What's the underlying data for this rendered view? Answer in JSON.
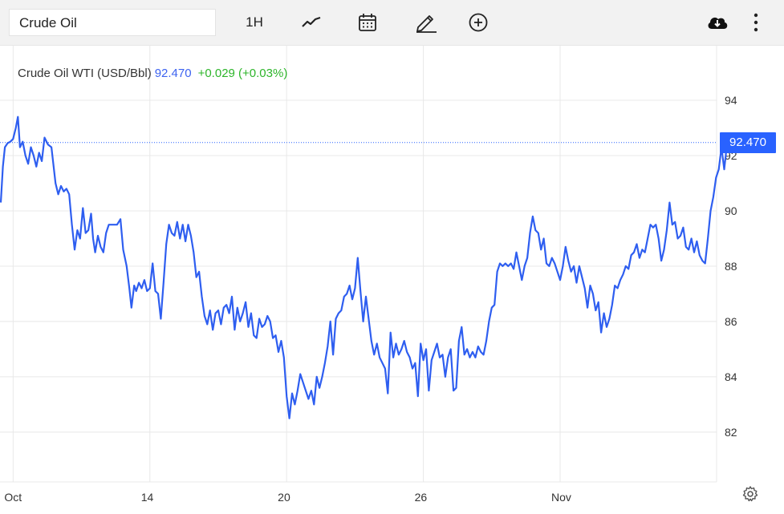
{
  "toolbar": {
    "symbol_value": "Crude Oil",
    "interval_label": "1H",
    "icons": [
      "line-chart-icon",
      "calendar-icon",
      "pencil-icon",
      "add-circle-icon",
      "cloud-download-icon",
      "more-vertical-icon"
    ]
  },
  "legend": {
    "name": "Crude Oil WTI (USD/Bbl)",
    "price": "92.470",
    "change": "+0.029 (+0.03%)"
  },
  "price_tag": "92.470",
  "colors": {
    "line": "#2e5ef0",
    "price_tag": "#2962ff",
    "change_positive": "#2db52a",
    "grid": "#e8e8e8"
  },
  "chart_data": {
    "type": "line",
    "title": "Crude Oil WTI (USD/Bbl)",
    "y_ticks": [
      82,
      84,
      86,
      88,
      90,
      92,
      94
    ],
    "ylim": [
      80.2,
      96.0
    ],
    "x_ticks": [
      {
        "label": "Oct",
        "x": 0
      },
      {
        "label": "14",
        "x": 10
      },
      {
        "label": "20",
        "x": 20
      },
      {
        "label": "26",
        "x": 30
      },
      {
        "label": "Nov",
        "x": 40
      }
    ],
    "xlim": [
      -0.9,
      51.5
    ],
    "last_value": 92.47,
    "grid": true,
    "series": [
      {
        "values": [
          [
            -0.9,
            90.3
          ],
          [
            -0.75,
            91.6
          ],
          [
            -0.6,
            92.3
          ],
          [
            -0.4,
            92.45
          ],
          [
            -0.2,
            92.5
          ],
          [
            0.0,
            92.6
          ],
          [
            0.2,
            93.0
          ],
          [
            0.35,
            93.4
          ],
          [
            0.5,
            92.3
          ],
          [
            0.7,
            92.5
          ],
          [
            0.9,
            92.0
          ],
          [
            1.1,
            91.7
          ],
          [
            1.3,
            92.3
          ],
          [
            1.5,
            92.0
          ],
          [
            1.7,
            91.6
          ],
          [
            1.9,
            92.1
          ],
          [
            2.1,
            91.8
          ],
          [
            2.3,
            92.65
          ],
          [
            2.55,
            92.4
          ],
          [
            2.8,
            92.3
          ],
          [
            3.1,
            91.0
          ],
          [
            3.3,
            90.6
          ],
          [
            3.5,
            90.9
          ],
          [
            3.7,
            90.7
          ],
          [
            3.9,
            90.8
          ],
          [
            4.1,
            90.6
          ],
          [
            4.3,
            89.5
          ],
          [
            4.5,
            88.6
          ],
          [
            4.7,
            89.3
          ],
          [
            4.9,
            89.0
          ],
          [
            5.1,
            90.1
          ],
          [
            5.3,
            89.2
          ],
          [
            5.5,
            89.3
          ],
          [
            5.7,
            89.9
          ],
          [
            5.85,
            89.0
          ],
          [
            6.0,
            88.5
          ],
          [
            6.2,
            89.1
          ],
          [
            6.4,
            88.7
          ],
          [
            6.6,
            88.5
          ],
          [
            6.8,
            89.2
          ],
          [
            7.0,
            89.5
          ],
          [
            7.3,
            89.5
          ],
          [
            7.6,
            89.5
          ],
          [
            7.85,
            89.7
          ],
          [
            8.05,
            88.6
          ],
          [
            8.3,
            88.0
          ],
          [
            8.5,
            87.2
          ],
          [
            8.65,
            86.5
          ],
          [
            8.85,
            87.3
          ],
          [
            9.0,
            87.1
          ],
          [
            9.2,
            87.4
          ],
          [
            9.4,
            87.2
          ],
          [
            9.6,
            87.5
          ],
          [
            9.8,
            87.1
          ],
          [
            10.0,
            87.2
          ],
          [
            10.2,
            88.1
          ],
          [
            10.4,
            87.1
          ],
          [
            10.6,
            87.0
          ],
          [
            10.8,
            86.1
          ],
          [
            11.0,
            87.4
          ],
          [
            11.2,
            88.8
          ],
          [
            11.4,
            89.5
          ],
          [
            11.6,
            89.2
          ],
          [
            11.8,
            89.1
          ],
          [
            12.0,
            89.6
          ],
          [
            12.2,
            89.0
          ],
          [
            12.4,
            89.5
          ],
          [
            12.6,
            88.9
          ],
          [
            12.8,
            89.5
          ],
          [
            13.0,
            89.1
          ],
          [
            13.2,
            88.5
          ],
          [
            13.4,
            87.6
          ],
          [
            13.6,
            87.8
          ],
          [
            13.8,
            86.9
          ],
          [
            14.0,
            86.2
          ],
          [
            14.2,
            85.9
          ],
          [
            14.4,
            86.4
          ],
          [
            14.6,
            85.7
          ],
          [
            14.8,
            86.3
          ],
          [
            15.0,
            86.4
          ],
          [
            15.2,
            85.9
          ],
          [
            15.4,
            86.5
          ],
          [
            15.6,
            86.6
          ],
          [
            15.8,
            86.3
          ],
          [
            16.0,
            86.9
          ],
          [
            16.2,
            85.7
          ],
          [
            16.4,
            86.5
          ],
          [
            16.6,
            86.0
          ],
          [
            16.8,
            86.3
          ],
          [
            17.0,
            86.7
          ],
          [
            17.2,
            85.8
          ],
          [
            17.4,
            86.3
          ],
          [
            17.6,
            85.5
          ],
          [
            17.8,
            85.4
          ],
          [
            18.0,
            86.1
          ],
          [
            18.2,
            85.8
          ],
          [
            18.4,
            85.9
          ],
          [
            18.6,
            86.2
          ],
          [
            18.8,
            86.0
          ],
          [
            19.0,
            85.4
          ],
          [
            19.2,
            85.5
          ],
          [
            19.4,
            84.9
          ],
          [
            19.6,
            85.3
          ],
          [
            19.8,
            84.7
          ],
          [
            20.0,
            83.3
          ],
          [
            20.2,
            82.5
          ],
          [
            20.4,
            83.4
          ],
          [
            20.6,
            83.0
          ],
          [
            20.8,
            83.5
          ],
          [
            21.0,
            84.1
          ],
          [
            21.2,
            83.8
          ],
          [
            21.4,
            83.5
          ],
          [
            21.6,
            83.2
          ],
          [
            21.8,
            83.5
          ],
          [
            22.0,
            83.0
          ],
          [
            22.2,
            84.0
          ],
          [
            22.4,
            83.6
          ],
          [
            22.6,
            84.0
          ],
          [
            22.8,
            84.5
          ],
          [
            23.0,
            85.1
          ],
          [
            23.2,
            86.0
          ],
          [
            23.4,
            84.8
          ],
          [
            23.6,
            86.1
          ],
          [
            23.8,
            86.3
          ],
          [
            24.0,
            86.4
          ],
          [
            24.2,
            86.9
          ],
          [
            24.4,
            87.0
          ],
          [
            24.6,
            87.3
          ],
          [
            24.8,
            86.8
          ],
          [
            25.0,
            87.2
          ],
          [
            25.2,
            88.3
          ],
          [
            25.4,
            87.1
          ],
          [
            25.6,
            86.0
          ],
          [
            25.8,
            86.9
          ],
          [
            26.0,
            86.1
          ],
          [
            26.2,
            85.3
          ],
          [
            26.4,
            84.8
          ],
          [
            26.6,
            85.2
          ],
          [
            26.8,
            84.7
          ],
          [
            27.0,
            84.5
          ],
          [
            27.2,
            84.3
          ],
          [
            27.4,
            83.4
          ],
          [
            27.6,
            85.6
          ],
          [
            27.8,
            84.7
          ],
          [
            28.0,
            85.2
          ],
          [
            28.2,
            84.8
          ],
          [
            28.4,
            85.0
          ],
          [
            28.6,
            85.3
          ],
          [
            28.8,
            84.9
          ],
          [
            29.0,
            84.7
          ],
          [
            29.2,
            84.3
          ],
          [
            29.4,
            84.5
          ],
          [
            29.6,
            83.3
          ],
          [
            29.8,
            85.2
          ],
          [
            30.0,
            84.6
          ],
          [
            30.2,
            85.0
          ],
          [
            30.4,
            83.5
          ],
          [
            30.6,
            84.6
          ],
          [
            30.8,
            84.9
          ],
          [
            31.0,
            85.2
          ],
          [
            31.2,
            84.7
          ],
          [
            31.4,
            84.8
          ],
          [
            31.6,
            84.0
          ],
          [
            31.8,
            84.7
          ],
          [
            32.0,
            85.0
          ],
          [
            32.2,
            83.5
          ],
          [
            32.4,
            83.6
          ],
          [
            32.6,
            85.3
          ],
          [
            32.8,
            85.8
          ],
          [
            33.0,
            84.8
          ],
          [
            33.2,
            85.0
          ],
          [
            33.4,
            84.7
          ],
          [
            33.6,
            84.9
          ],
          [
            33.8,
            84.7
          ],
          [
            34.0,
            85.1
          ],
          [
            34.2,
            84.9
          ],
          [
            34.4,
            84.8
          ],
          [
            34.6,
            85.3
          ],
          [
            34.8,
            86.0
          ],
          [
            35.0,
            86.5
          ],
          [
            35.2,
            86.6
          ],
          [
            35.4,
            87.8
          ],
          [
            35.6,
            88.1
          ],
          [
            35.8,
            88.0
          ],
          [
            36.0,
            88.1
          ],
          [
            36.2,
            88.0
          ],
          [
            36.4,
            88.1
          ],
          [
            36.6,
            87.9
          ],
          [
            36.8,
            88.5
          ],
          [
            37.0,
            88.0
          ],
          [
            37.2,
            87.5
          ],
          [
            37.4,
            88.0
          ],
          [
            37.6,
            88.3
          ],
          [
            37.8,
            89.2
          ],
          [
            38.0,
            89.8
          ],
          [
            38.2,
            89.3
          ],
          [
            38.4,
            89.2
          ],
          [
            38.6,
            88.6
          ],
          [
            38.8,
            89.0
          ],
          [
            39.0,
            88.1
          ],
          [
            39.2,
            88.0
          ],
          [
            39.4,
            88.3
          ],
          [
            39.6,
            88.1
          ],
          [
            39.8,
            87.8
          ],
          [
            40.0,
            87.5
          ],
          [
            40.2,
            88.0
          ],
          [
            40.4,
            88.7
          ],
          [
            40.6,
            88.2
          ],
          [
            40.8,
            87.8
          ],
          [
            41.0,
            88.0
          ],
          [
            41.2,
            87.4
          ],
          [
            41.4,
            88.0
          ],
          [
            41.6,
            87.6
          ],
          [
            41.8,
            87.2
          ],
          [
            42.0,
            86.5
          ],
          [
            42.2,
            87.3
          ],
          [
            42.4,
            87.0
          ],
          [
            42.6,
            86.4
          ],
          [
            42.8,
            86.7
          ],
          [
            43.0,
            85.6
          ],
          [
            43.2,
            86.3
          ],
          [
            43.4,
            85.8
          ],
          [
            43.6,
            86.1
          ],
          [
            43.8,
            86.6
          ],
          [
            44.0,
            87.3
          ],
          [
            44.2,
            87.2
          ],
          [
            44.4,
            87.5
          ],
          [
            44.6,
            87.7
          ],
          [
            44.8,
            88.0
          ],
          [
            45.0,
            87.9
          ],
          [
            45.2,
            88.4
          ],
          [
            45.4,
            88.5
          ],
          [
            45.6,
            88.8
          ],
          [
            45.8,
            88.3
          ],
          [
            46.0,
            88.6
          ],
          [
            46.2,
            88.5
          ],
          [
            46.4,
            89.0
          ],
          [
            46.6,
            89.5
          ],
          [
            46.8,
            89.4
          ],
          [
            47.0,
            89.5
          ],
          [
            47.2,
            89.0
          ],
          [
            47.4,
            88.2
          ],
          [
            47.6,
            88.6
          ],
          [
            47.8,
            89.3
          ],
          [
            48.0,
            90.3
          ],
          [
            48.2,
            89.5
          ],
          [
            48.4,
            89.6
          ],
          [
            48.6,
            89.0
          ],
          [
            48.8,
            89.1
          ],
          [
            49.0,
            89.4
          ],
          [
            49.2,
            88.7
          ],
          [
            49.4,
            88.6
          ],
          [
            49.6,
            89.0
          ],
          [
            49.8,
            88.5
          ],
          [
            50.0,
            88.9
          ],
          [
            50.2,
            88.4
          ],
          [
            50.4,
            88.2
          ],
          [
            50.6,
            88.1
          ],
          [
            50.8,
            89.0
          ],
          [
            51.0,
            90.0
          ],
          [
            51.2,
            90.5
          ],
          [
            51.4,
            91.2
          ],
          [
            51.6,
            91.5
          ],
          [
            51.8,
            92.3
          ],
          [
            52.0,
            91.5
          ],
          [
            52.2,
            92.4
          ],
          [
            52.4,
            92.7
          ],
          [
            52.6,
            92.2
          ],
          [
            52.8,
            92.47
          ]
        ]
      }
    ]
  }
}
